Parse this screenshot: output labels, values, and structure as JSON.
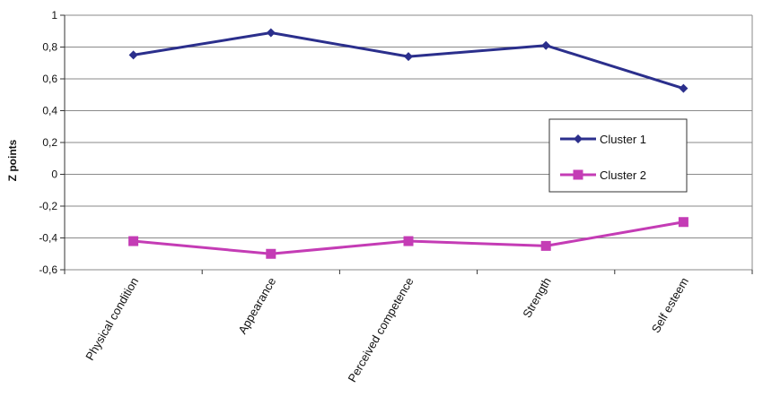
{
  "chart_data": {
    "type": "line",
    "title": "",
    "xlabel": "",
    "ylabel": "Z points",
    "ylim": [
      -0.6,
      1
    ],
    "yticks": [
      1,
      0.8,
      0.6,
      0.4,
      0.2,
      0,
      -0.2,
      -0.4,
      -0.6
    ],
    "ytick_labels": [
      "1",
      "0,8",
      "0,6",
      "0,4",
      "0,2",
      "0",
      "-0,2",
      "-0,4",
      "-0,6"
    ],
    "categories": [
      "Physical condition",
      "Appearance",
      "Perceived competence",
      "Strength",
      "Self esteem"
    ],
    "grid": true,
    "legend_position": "right",
    "series": [
      {
        "name": "Cluster 1",
        "values": [
          0.75,
          0.89,
          0.74,
          0.81,
          0.54
        ],
        "color": "#2b2f8c",
        "marker": "diamond"
      },
      {
        "name": "Cluster 2",
        "values": [
          -0.42,
          -0.5,
          -0.42,
          -0.45,
          -0.3
        ],
        "color": "#c43cb5",
        "marker": "square"
      }
    ]
  }
}
